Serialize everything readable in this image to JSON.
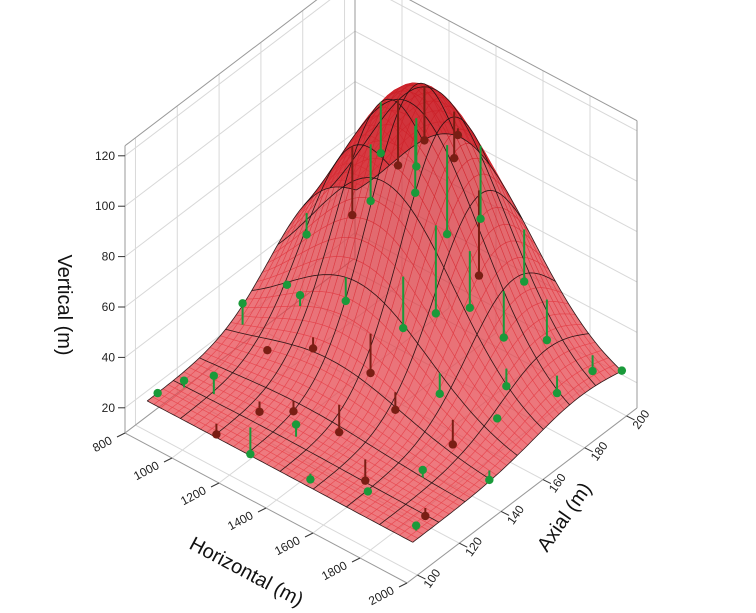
{
  "chart_data": {
    "type": "surface-3d",
    "title": "",
    "axes": {
      "x": {
        "label": "Horizontal (m)",
        "ticks": [
          800,
          1000,
          1200,
          1400,
          1600,
          1800,
          2000
        ],
        "range": [
          800,
          2000
        ]
      },
      "y": {
        "label": "Axial (m)",
        "ticks": [
          100,
          120,
          140,
          160,
          180,
          200
        ],
        "range": [
          95,
          205
        ]
      },
      "z": {
        "label": "Vertical (m)",
        "ticks": [
          20,
          40,
          60,
          80,
          100,
          120
        ],
        "range": [
          10,
          120
        ]
      }
    },
    "surface": {
      "model": "gaussian-peak",
      "base": 22,
      "amplitude": 96,
      "center_x": 1300,
      "center_y": 180,
      "sigma_x": 300,
      "sigma_y": 22
    },
    "points": [
      {
        "x": 850,
        "y": 105,
        "z": 22,
        "side": "above"
      },
      {
        "x": 900,
        "y": 112,
        "z": 25,
        "side": "above"
      },
      {
        "x": 1000,
        "y": 115,
        "z": 30,
        "side": "above"
      },
      {
        "x": 1100,
        "y": 105,
        "z": 18,
        "side": "below"
      },
      {
        "x": 1150,
        "y": 120,
        "z": 20,
        "side": "below"
      },
      {
        "x": 1200,
        "y": 110,
        "z": 12,
        "side": "above"
      },
      {
        "x": 1250,
        "y": 125,
        "z": 22,
        "side": "below"
      },
      {
        "x": 1350,
        "y": 115,
        "z": 28,
        "side": "above"
      },
      {
        "x": 1400,
        "y": 130,
        "z": 18,
        "side": "below"
      },
      {
        "x": 1500,
        "y": 105,
        "z": 20,
        "side": "above"
      },
      {
        "x": 1600,
        "y": 120,
        "z": 15,
        "side": "below"
      },
      {
        "x": 1700,
        "y": 110,
        "z": 22,
        "side": "above"
      },
      {
        "x": 1800,
        "y": 125,
        "z": 26,
        "side": "above"
      },
      {
        "x": 1900,
        "y": 115,
        "z": 19,
        "side": "below"
      },
      {
        "x": 1950,
        "y": 105,
        "z": 24,
        "side": "above"
      },
      {
        "x": 900,
        "y": 140,
        "z": 38,
        "side": "above"
      },
      {
        "x": 1000,
        "y": 150,
        "z": 44,
        "side": "above"
      },
      {
        "x": 1050,
        "y": 135,
        "z": 30,
        "side": "below"
      },
      {
        "x": 1100,
        "y": 145,
        "z": 48,
        "side": "above"
      },
      {
        "x": 1200,
        "y": 140,
        "z": 35,
        "side": "below"
      },
      {
        "x": 1250,
        "y": 150,
        "z": 50,
        "side": "above"
      },
      {
        "x": 1400,
        "y": 145,
        "z": 32,
        "side": "below"
      },
      {
        "x": 1450,
        "y": 155,
        "z": 46,
        "side": "above"
      },
      {
        "x": 1550,
        "y": 140,
        "z": 28,
        "side": "below"
      },
      {
        "x": 1650,
        "y": 150,
        "z": 33,
        "side": "above"
      },
      {
        "x": 1750,
        "y": 145,
        "z": 21,
        "side": "below"
      },
      {
        "x": 1850,
        "y": 155,
        "z": 30,
        "side": "above"
      },
      {
        "x": 1950,
        "y": 140,
        "z": 20,
        "side": "above"
      },
      {
        "x": 950,
        "y": 165,
        "z": 52,
        "side": "above"
      },
      {
        "x": 1100,
        "y": 170,
        "z": 64,
        "side": "below"
      },
      {
        "x": 1150,
        "y": 178,
        "z": 86,
        "side": "above"
      },
      {
        "x": 1250,
        "y": 175,
        "z": 88,
        "side": "below"
      },
      {
        "x": 1300,
        "y": 182,
        "z": 96,
        "side": "below"
      },
      {
        "x": 1350,
        "y": 172,
        "z": 84,
        "side": "above"
      },
      {
        "x": 1400,
        "y": 185,
        "z": 92,
        "side": "below"
      },
      {
        "x": 1450,
        "y": 176,
        "z": 70,
        "side": "above"
      },
      {
        "x": 1500,
        "y": 165,
        "z": 48,
        "side": "above"
      },
      {
        "x": 1550,
        "y": 180,
        "z": 56,
        "side": "below"
      },
      {
        "x": 1600,
        "y": 170,
        "z": 52,
        "side": "above"
      },
      {
        "x": 1700,
        "y": 175,
        "z": 42,
        "side": "above"
      },
      {
        "x": 1800,
        "y": 165,
        "z": 34,
        "side": "above"
      },
      {
        "x": 1900,
        "y": 178,
        "z": 28,
        "side": "above"
      },
      {
        "x": 1000,
        "y": 190,
        "z": 52,
        "side": "above"
      },
      {
        "x": 1150,
        "y": 195,
        "z": 70,
        "side": "above"
      },
      {
        "x": 1300,
        "y": 198,
        "z": 88,
        "side": "below"
      },
      {
        "x": 1450,
        "y": 192,
        "z": 66,
        "side": "above"
      },
      {
        "x": 1600,
        "y": 196,
        "z": 46,
        "side": "above"
      },
      {
        "x": 1750,
        "y": 190,
        "z": 34,
        "side": "above"
      },
      {
        "x": 1900,
        "y": 195,
        "z": 26,
        "side": "above"
      },
      {
        "x": 1980,
        "y": 200,
        "z": 27,
        "side": "above"
      }
    ],
    "colors": {
      "surface": "#e8333b",
      "point": "#1a9a3a",
      "point_below": "#7a1e14",
      "mesh": "#111111",
      "grid": "#d8d8d8",
      "box": "#333333"
    }
  }
}
